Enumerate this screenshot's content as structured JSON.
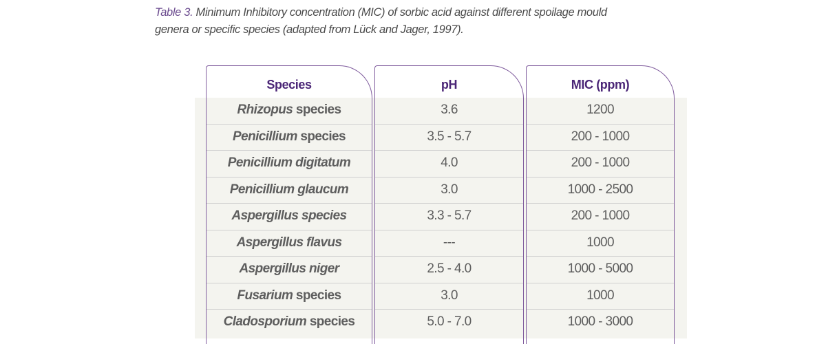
{
  "caption": {
    "label": "Table 3.",
    "text": " Minimum Inhibitory concentration (MIC) of sorbic acid against different spoilage mould genera or specific species (adapted from Lück and Jager, 1997)."
  },
  "table": {
    "headers": {
      "species": "Species",
      "ph": "pH",
      "mic": "MIC (ppm)"
    },
    "rows": [
      {
        "species_italic": "Rhizopus",
        "species_rest": " species",
        "ph": "3.6",
        "mic": "1200"
      },
      {
        "species_italic": "Penicillium",
        "species_rest": " species",
        "ph": "3.5 - 5.7",
        "mic": "200 - 1000"
      },
      {
        "species_italic": "Penicillium digitatum",
        "species_rest": "",
        "ph": "4.0",
        "mic": "200 - 1000"
      },
      {
        "species_italic": "Penicillium glaucum",
        "species_rest": "",
        "ph": "3.0",
        "mic": "1000 - 2500"
      },
      {
        "species_italic": "Aspergillus species",
        "species_rest": "",
        "ph": "3.3 - 5.7",
        "mic": "200 - 1000"
      },
      {
        "species_italic": "Aspergillus flavus",
        "species_rest": "",
        "ph": "---",
        "mic": "1000"
      },
      {
        "species_italic": "Aspergillus niger",
        "species_rest": "",
        "ph": "2.5 - 4.0",
        "mic": "1000 - 5000"
      },
      {
        "species_italic": "Fusarium",
        "species_rest": " species",
        "ph": "3.0",
        "mic": "1000"
      },
      {
        "species_italic": "Cladosporium",
        "species_rest": " species",
        "ph": "5.0 - 7.0",
        "mic": "1000 - 3000"
      }
    ]
  },
  "colors": {
    "accent": "#7e5a9c",
    "header_text": "#4b2677",
    "band": "#f4f4ef"
  }
}
